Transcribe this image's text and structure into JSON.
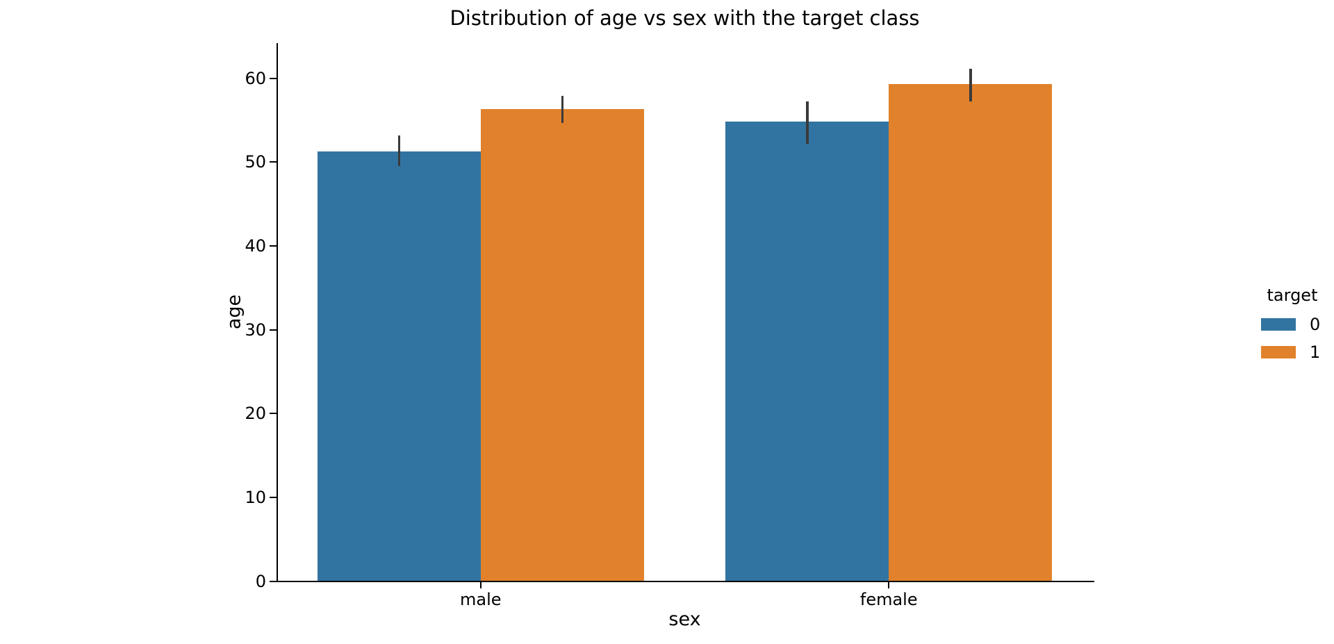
{
  "chart_data": {
    "type": "bar",
    "title": "Distribution of age vs sex with the target class",
    "xlabel": "sex",
    "ylabel": "age",
    "categories": [
      "male",
      "female"
    ],
    "series": [
      {
        "name": "0",
        "color": "#3274a1",
        "means": [
          51.3,
          54.8
        ],
        "ci_low": [
          49.5,
          52.2
        ],
        "ci_high": [
          53.2,
          57.2
        ]
      },
      {
        "name": "1",
        "color": "#e1812c",
        "means": [
          56.3,
          59.3
        ],
        "ci_low": [
          54.7,
          57.2
        ],
        "ci_high": [
          57.9,
          61.1
        ]
      }
    ],
    "yticks": [
      0,
      10,
      20,
      30,
      40,
      50,
      60
    ],
    "ylim": [
      0,
      64.2
    ],
    "grid": false,
    "legend": {
      "title": "target",
      "entries": [
        "0",
        "1"
      ],
      "position": "right"
    },
    "error_bar_color": "#3a3a3a",
    "bar_group_width_fraction": 0.8
  }
}
